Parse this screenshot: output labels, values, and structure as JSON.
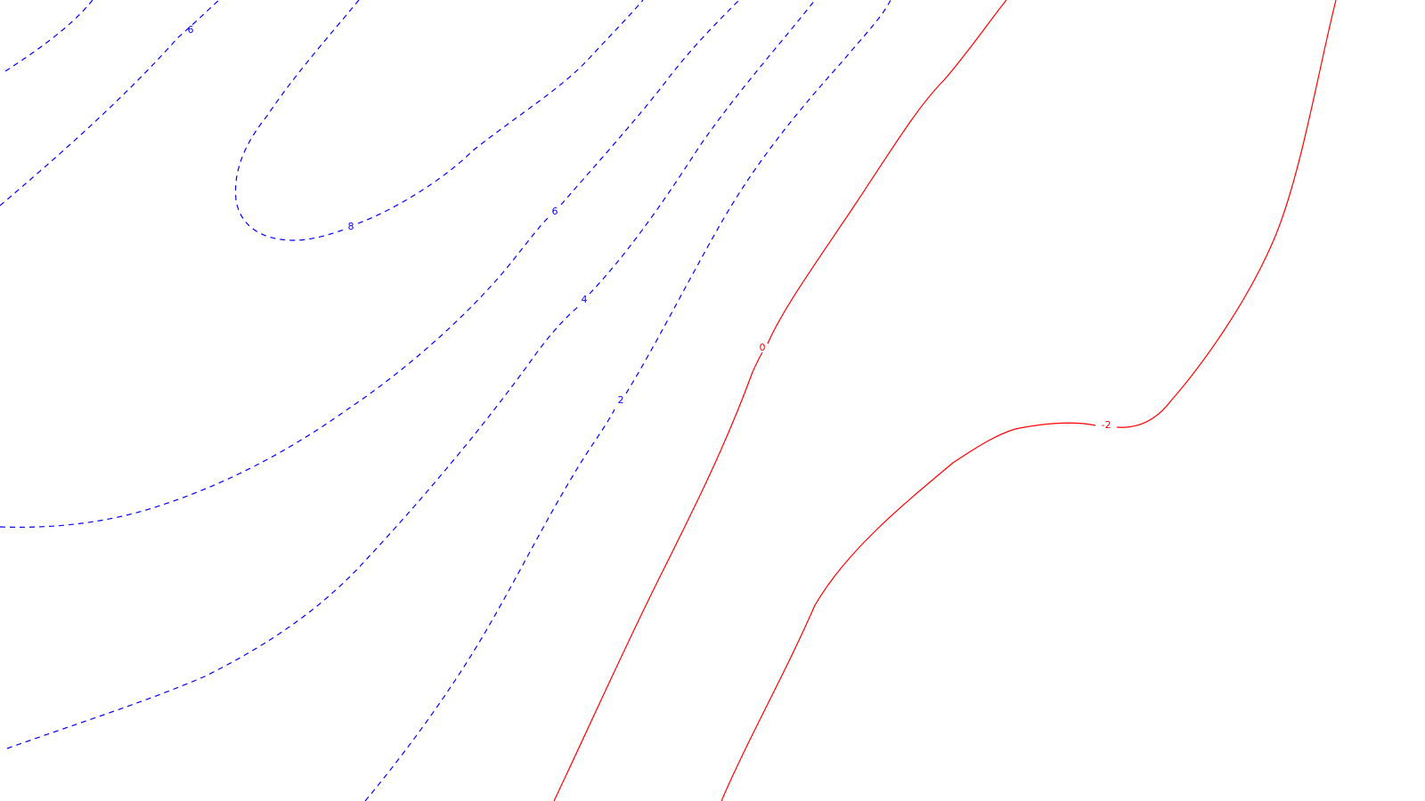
{
  "colors": {
    "background": "#ffffff",
    "positive": "#0000ff",
    "non_positive": "#ff0000"
  },
  "line_styles": {
    "positive": "dashed",
    "non_positive": "solid"
  },
  "contours": [
    {
      "id": "outer-6",
      "label": "6",
      "style": "positive"
    },
    {
      "id": "peak-8",
      "label": "8",
      "style": "positive"
    },
    {
      "id": "inner-6",
      "label": "6",
      "style": "positive"
    },
    {
      "id": "4",
      "label": "4",
      "style": "positive"
    },
    {
      "id": "2",
      "label": "2",
      "style": "positive"
    },
    {
      "id": "0",
      "label": "0",
      "style": "non_positive"
    },
    {
      "id": "-2",
      "label": "-2",
      "style": "non_positive"
    }
  ]
}
